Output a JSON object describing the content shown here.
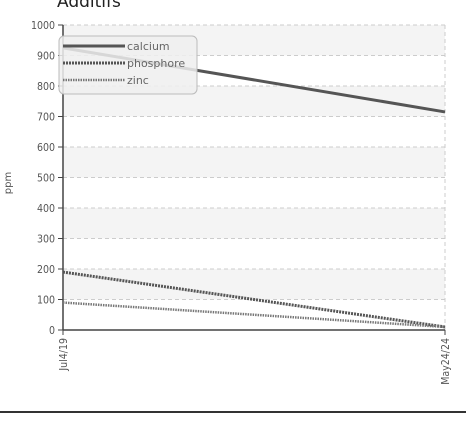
{
  "chart_data": {
    "type": "line",
    "title": "Additifs",
    "xlabel": "",
    "ylabel": "ppm",
    "categories": [
      "Jul4/19",
      "May24/24"
    ],
    "ylim": [
      0,
      1000
    ],
    "yticks": [
      0,
      100,
      200,
      300,
      400,
      500,
      600,
      700,
      800,
      900,
      1000
    ],
    "grid": true,
    "legend_position": "top-left",
    "series": [
      {
        "name": "calcium",
        "values": [
          925,
          715
        ],
        "color": "#555555",
        "style": "solid"
      },
      {
        "name": "phosphore",
        "values": [
          190,
          10
        ],
        "color": "#555555",
        "style": "dotted"
      },
      {
        "name": "zinc",
        "values": [
          90,
          10
        ],
        "color": "#777777",
        "style": "dashed"
      }
    ]
  }
}
